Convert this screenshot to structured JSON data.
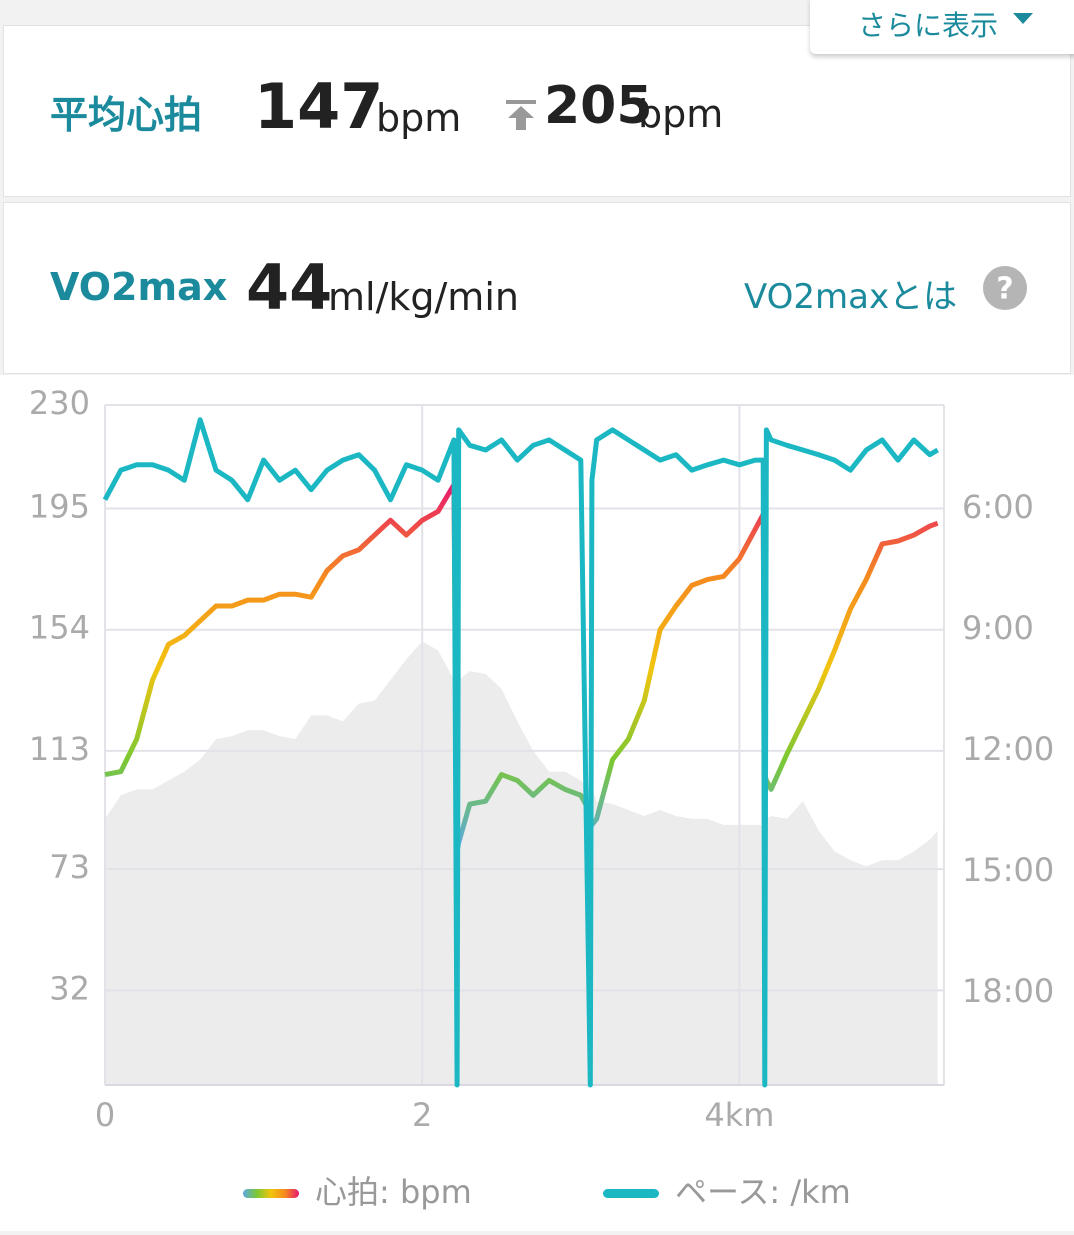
{
  "more_button": "さらに表示",
  "heart_rate_card": {
    "label": "平均心拍",
    "average": 147,
    "average_unit": "bpm",
    "max": 205,
    "max_unit": "bpm"
  },
  "vo2max_card": {
    "label": "VO2max",
    "value": 44,
    "unit": "ml/kg/min",
    "link": "VO2maxとは"
  },
  "chart_data": {
    "type": "line",
    "x": [
      0,
      0.1,
      0.2,
      0.3,
      0.4,
      0.5,
      0.6,
      0.7,
      0.8,
      0.9,
      1.0,
      1.1,
      1.2,
      1.3,
      1.4,
      1.5,
      1.6,
      1.7,
      1.8,
      1.9,
      2.0,
      2.1,
      2.2,
      2.22,
      2.23,
      2.3,
      2.4,
      2.5,
      2.6,
      2.7,
      2.8,
      2.9,
      3.0,
      3.06,
      3.07,
      3.1,
      3.2,
      3.3,
      3.4,
      3.5,
      3.6,
      3.7,
      3.8,
      3.9,
      4.0,
      4.1,
      4.15,
      4.16,
      4.17,
      4.2,
      4.3,
      4.4,
      4.5,
      4.6,
      4.7,
      4.8,
      4.9,
      5.0,
      5.1,
      5.2,
      5.25
    ],
    "xlim": [
      0,
      5.29
    ],
    "xticks": [
      0,
      2,
      {
        "value": 4,
        "label": "4km"
      }
    ],
    "ylim": [
      0,
      230
    ],
    "yticks": [
      32,
      73,
      113,
      154,
      195,
      230
    ],
    "y2lim": [
      1217,
      205
    ],
    "y2ticks": [
      {
        "value": 360,
        "label": "6:00"
      },
      {
        "value": 540,
        "label": "9:00"
      },
      {
        "value": 720,
        "label": "12:00"
      },
      {
        "value": 900,
        "label": "15:00"
      },
      {
        "value": 1080,
        "label": "18:00"
      }
    ],
    "grid": true,
    "series": [
      {
        "name": "心拍: bpm",
        "colors": [
          "#5aa9e6",
          "#7cc832",
          "#f2c40f",
          "#f58a1f",
          "#e8186c"
        ],
        "values": [
          105,
          106,
          117,
          137,
          149,
          152,
          157,
          162,
          162,
          164,
          164,
          166,
          166,
          165,
          174,
          179,
          181,
          186,
          191,
          186,
          191,
          194,
          203,
          79,
          82,
          95,
          96,
          105,
          103,
          98,
          103,
          100,
          98,
          92,
          88,
          90,
          110,
          117,
          130,
          154,
          162,
          169,
          171,
          172,
          178,
          188,
          193,
          105,
          103,
          100,
          112,
          123,
          134,
          147,
          161,
          171,
          183,
          184,
          186,
          189,
          190
        ]
      },
      {
        "name": "ペース: /km",
        "color": "#1bb8c4",
        "axis": "y2",
        "values": [
          346,
          302,
          294,
          294,
          302,
          317,
          227,
          302,
          317,
          346,
          287,
          317,
          302,
          331,
          302,
          287,
          279,
          302,
          346,
          294,
          302,
          317,
          257,
          1217,
          242,
          265,
          272,
          257,
          287,
          265,
          257,
          272,
          287,
          1217,
          317,
          257,
          242,
          257,
          272,
          287,
          279,
          302,
          294,
          287,
          294,
          287,
          287,
          1217,
          242,
          257,
          265,
          272,
          279,
          287,
          302,
          272,
          257,
          287,
          257,
          279,
          272
        ]
      },
      {
        "color": "#ececec",
        "style": "area",
        "values": [
          90,
          98,
          100,
          100,
          103,
          106,
          110,
          117,
          118,
          120,
          120,
          118,
          117,
          125,
          125,
          123,
          129,
          130,
          137,
          144,
          150,
          147,
          137,
          137,
          137,
          140,
          139,
          134,
          123,
          113,
          106,
          106,
          103,
          100,
          100,
          96,
          95,
          93,
          91,
          93,
          91,
          90,
          90,
          88,
          88,
          88,
          88,
          88,
          90,
          91,
          90,
          96,
          86,
          79,
          76,
          74,
          76,
          76,
          79,
          83,
          86
        ]
      }
    ]
  }
}
